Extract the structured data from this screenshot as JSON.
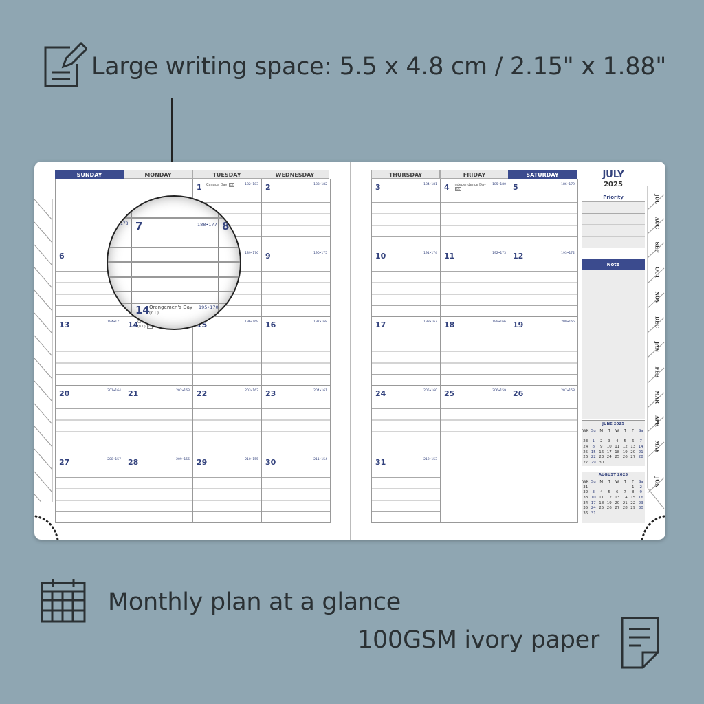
{
  "features": {
    "writing_space": "Large writing space: 5.5 x 4.8 cm / 2.15\" x 1.88\"",
    "monthly_plan": "Monthly plan at a glance",
    "paper": "100GSM ivory paper"
  },
  "colors": {
    "background": "#8fa6b2",
    "accent_navy": "#3b4b8e",
    "text": "#2b3134"
  },
  "left_page": {
    "headers": [
      "SUNDAY",
      "MONDAY",
      "TUESDAY",
      "WEDNESDAY"
    ]
  },
  "right_page": {
    "headers": [
      "THURSDAY",
      "FRIDAY",
      "SATURDAY"
    ]
  },
  "weeks": [
    [
      {
        "day": ""
      },
      {
        "day": ""
      },
      {
        "day": "1",
        "doy": "182•183",
        "holiday": "Canada Day",
        "badge": "CA"
      },
      {
        "day": "2",
        "doy": "183•182"
      },
      {
        "day": "3",
        "doy": "184•181"
      },
      {
        "day": "4",
        "doy": "185•180",
        "holiday": "Independence Day",
        "badge": "US"
      },
      {
        "day": "5",
        "doy": "186•179"
      }
    ],
    [
      {
        "day": "6",
        "doy": "187•178"
      },
      {
        "day": "7",
        "doy": "188•177"
      },
      {
        "day": "8",
        "doy": "189•176"
      },
      {
        "day": "9",
        "doy": "190•175"
      },
      {
        "day": "10",
        "doy": "191•174"
      },
      {
        "day": "11",
        "doy": "192•173"
      },
      {
        "day": "12",
        "doy": "193•172"
      }
    ],
    [
      {
        "day": "13",
        "doy": "194•171"
      },
      {
        "day": "14",
        "doy": "195•170",
        "holiday": "Orangemen's Day (n.l.)",
        "badge": "CA"
      },
      {
        "day": "15",
        "doy": "196•169"
      },
      {
        "day": "16",
        "doy": "197•168"
      },
      {
        "day": "17",
        "doy": "198•167"
      },
      {
        "day": "18",
        "doy": "199•166"
      },
      {
        "day": "19",
        "doy": "200•165"
      }
    ],
    [
      {
        "day": "20",
        "doy": "201•164"
      },
      {
        "day": "21",
        "doy": "202•163"
      },
      {
        "day": "22",
        "doy": "203•162"
      },
      {
        "day": "23",
        "doy": "204•161"
      },
      {
        "day": "24",
        "doy": "205•160"
      },
      {
        "day": "25",
        "doy": "206•159"
      },
      {
        "day": "26",
        "doy": "207•158"
      }
    ],
    [
      {
        "day": "27",
        "doy": "208•157"
      },
      {
        "day": "28",
        "doy": "209•156"
      },
      {
        "day": "29",
        "doy": "210•155"
      },
      {
        "day": "30",
        "doy": "211•154"
      },
      {
        "day": "31",
        "doy": "212•153"
      },
      {
        "day": ""
      },
      {
        "day": ""
      }
    ]
  ],
  "magnifier": {
    "day": "7",
    "doy": "188•177",
    "next_day": "8",
    "below_day": "14",
    "below_holiday": "Orangemen's Day",
    "below_note": "(n.l.)",
    "below_doy": "195•170",
    "left_doy": "178"
  },
  "sidebar": {
    "month": "JULY",
    "year": "2025",
    "priority_label": "Priority",
    "note_label": "Note"
  },
  "mini_calendars": [
    {
      "title": "JUNE  2025",
      "rows": [
        [
          "WK",
          "Su",
          "M",
          "T",
          "W",
          "T",
          "F",
          "Sa"
        ],
        [
          "",
          "",
          "",
          "",
          "",
          "",
          "",
          ""
        ],
        [
          "23",
          "1",
          "2",
          "3",
          "4",
          "5",
          "6",
          "7"
        ],
        [
          "24",
          "8",
          "9",
          "10",
          "11",
          "12",
          "13",
          "14"
        ],
        [
          "25",
          "15",
          "16",
          "17",
          "18",
          "19",
          "20",
          "21"
        ],
        [
          "26",
          "22",
          "23",
          "24",
          "25",
          "26",
          "27",
          "28"
        ],
        [
          "27",
          "29",
          "30",
          "",
          "",
          "",
          "",
          ""
        ]
      ]
    },
    {
      "title": "AUGUST  2025",
      "rows": [
        [
          "WK",
          "Su",
          "M",
          "T",
          "W",
          "T",
          "F",
          "Sa"
        ],
        [
          "31",
          "",
          "",
          "",
          "",
          "",
          "1",
          "2"
        ],
        [
          "32",
          "3",
          "4",
          "5",
          "6",
          "7",
          "8",
          "9"
        ],
        [
          "33",
          "10",
          "11",
          "12",
          "13",
          "14",
          "15",
          "16"
        ],
        [
          "34",
          "17",
          "18",
          "19",
          "20",
          "21",
          "22",
          "23"
        ],
        [
          "35",
          "24",
          "25",
          "26",
          "27",
          "28",
          "29",
          "30"
        ],
        [
          "36",
          "31",
          "",
          "",
          "",
          "",
          "",
          ""
        ]
      ]
    }
  ],
  "tabs": [
    "JUL",
    "AUG",
    "SEP",
    "OCT",
    "NOV",
    "DEC",
    "JAN",
    "FEB",
    "MAR",
    "APR",
    "MAY",
    "JUN"
  ]
}
